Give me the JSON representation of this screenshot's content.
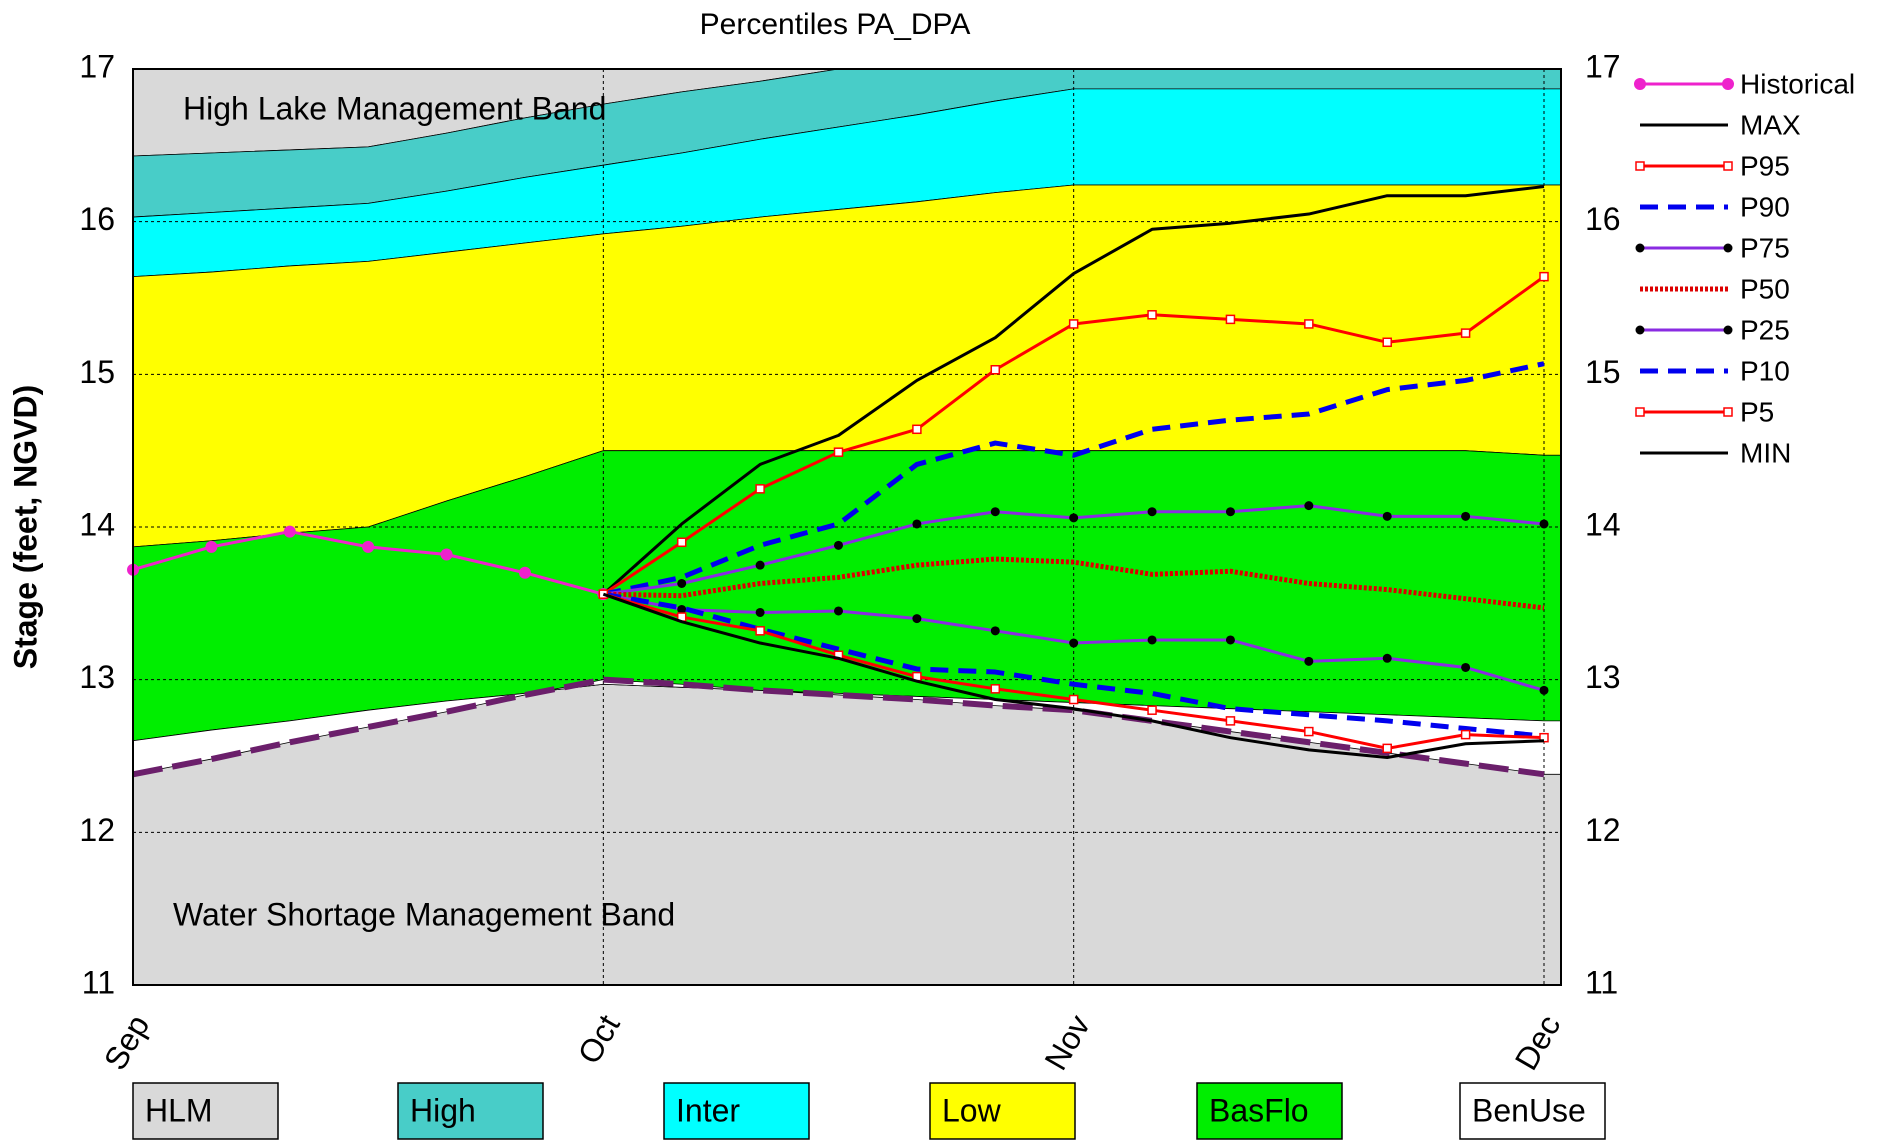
{
  "chart_data": {
    "type": "line",
    "title": "Percentiles PA_DPA",
    "y_label": "Stage (feet, NGVD)",
    "annotations": [
      "High Lake Management Band",
      "Water Shortage Management Band"
    ],
    "categories": [
      "Sep",
      null,
      null,
      null,
      null,
      null,
      "Oct",
      null,
      null,
      null,
      null,
      null,
      "Nov",
      null,
      null,
      null,
      null,
      null,
      "Dec"
    ],
    "ylim": [
      11,
      17
    ],
    "yticks": [
      11,
      12,
      13,
      14,
      15,
      16,
      17
    ],
    "y2lim": [
      11,
      17
    ],
    "y2ticks": [
      11,
      12,
      13,
      14,
      15,
      16,
      17
    ],
    "grid": true,
    "legend": "right",
    "background_color": "#d9d9d9",
    "bands": [
      {
        "name": "HLM",
        "color": "#d9d9d9",
        "values": [
          17,
          17,
          17,
          17,
          17,
          17,
          17,
          17,
          17,
          17,
          17,
          17,
          17,
          17,
          17,
          17,
          17,
          17,
          17
        ]
      },
      {
        "name": "High",
        "color": "#48cdc8",
        "values": [
          16.43,
          16.45,
          16.47,
          16.49,
          16.58,
          16.68,
          16.77,
          16.85,
          16.92,
          17,
          17,
          17,
          17,
          17,
          17,
          17,
          17,
          17,
          17
        ]
      },
      {
        "name": "Inter",
        "color": "#00ffff",
        "values": [
          16.03,
          16.06,
          16.09,
          16.12,
          16.2,
          16.29,
          16.37,
          16.45,
          16.54,
          16.62,
          16.7,
          16.79,
          16.87,
          16.87,
          16.87,
          16.87,
          16.87,
          16.87,
          16.87
        ]
      },
      {
        "name": "Low",
        "color": "#ffff00",
        "values": [
          15.64,
          15.67,
          15.71,
          15.74,
          15.8,
          15.86,
          15.92,
          15.97,
          16.03,
          16.08,
          16.13,
          16.19,
          16.24,
          16.24,
          16.24,
          16.24,
          16.24,
          16.24,
          16.24
        ]
      },
      {
        "name": "BasFlo",
        "color": "#00ee00",
        "values": [
          13.87,
          13.91,
          13.96,
          14.0,
          14.17,
          14.33,
          14.5,
          14.5,
          14.5,
          14.5,
          14.5,
          14.5,
          14.5,
          14.5,
          14.5,
          14.5,
          14.5,
          14.5,
          14.47
        ]
      },
      {
        "name": "BenUse",
        "color": "#ffffff",
        "values": [
          12.6,
          12.67,
          12.73,
          12.8,
          12.86,
          12.91,
          12.97,
          12.95,
          12.93,
          12.91,
          12.89,
          12.87,
          12.85,
          12.83,
          12.81,
          12.79,
          12.77,
          12.75,
          12.73
        ]
      }
    ],
    "shortage_line": {
      "color": "#6b1f6b",
      "values": [
        12.38,
        12.48,
        12.59,
        12.69,
        12.79,
        12.9,
        13.0,
        12.97,
        12.93,
        12.9,
        12.87,
        12.83,
        12.8,
        12.73,
        12.66,
        12.59,
        12.52,
        12.45,
        12.38
      ]
    },
    "series": [
      {
        "name": "Historical",
        "color": "#ee22cc",
        "dash": "solid",
        "marker": "circle",
        "values": [
          13.72,
          13.87,
          13.97,
          13.87,
          13.82,
          13.7,
          13.56,
          null,
          null,
          null,
          null,
          null,
          null,
          null,
          null,
          null,
          null,
          null,
          null
        ]
      },
      {
        "name": "MAX",
        "color": "#000000",
        "dash": "solid",
        "marker": "none",
        "values": [
          null,
          null,
          null,
          null,
          null,
          null,
          13.56,
          14.02,
          14.41,
          14.6,
          14.96,
          15.24,
          15.66,
          15.95,
          15.99,
          16.05,
          16.17,
          16.17,
          16.23
        ]
      },
      {
        "name": "P95",
        "color": "#ff0000",
        "dash": "solid",
        "marker": "square",
        "values": [
          null,
          null,
          null,
          null,
          null,
          null,
          13.56,
          13.9,
          14.25,
          14.49,
          14.64,
          15.03,
          15.33,
          15.39,
          15.36,
          15.33,
          15.21,
          15.27,
          15.64
        ]
      },
      {
        "name": "P90",
        "color": "#0000ee",
        "dash": "dashed",
        "marker": "none",
        "values": [
          null,
          null,
          null,
          null,
          null,
          null,
          13.56,
          13.67,
          13.88,
          14.02,
          14.41,
          14.55,
          14.47,
          14.64,
          14.7,
          14.74,
          14.9,
          14.96,
          15.07
        ]
      },
      {
        "name": "P75",
        "color": "#8a2be2",
        "dash": "solid",
        "marker": "dot",
        "values": [
          null,
          null,
          null,
          null,
          null,
          null,
          13.56,
          13.63,
          13.75,
          13.88,
          14.02,
          14.1,
          14.06,
          14.1,
          14.1,
          14.14,
          14.07,
          14.07,
          14.02
        ]
      },
      {
        "name": "P50",
        "color": "#dd0000",
        "dash": "dotted",
        "marker": "none",
        "values": [
          null,
          null,
          null,
          null,
          null,
          null,
          13.56,
          13.55,
          13.63,
          13.67,
          13.75,
          13.79,
          13.77,
          13.69,
          13.71,
          13.63,
          13.59,
          13.53,
          13.47
        ]
      },
      {
        "name": "P25",
        "color": "#8a2be2",
        "dash": "solid",
        "marker": "dot",
        "values": [
          null,
          null,
          null,
          null,
          null,
          null,
          13.56,
          13.46,
          13.44,
          13.45,
          13.4,
          13.32,
          13.24,
          13.26,
          13.26,
          13.12,
          13.14,
          13.08,
          12.93
        ]
      },
      {
        "name": "P10",
        "color": "#0000ee",
        "dash": "dashed",
        "marker": "none",
        "values": [
          null,
          null,
          null,
          null,
          null,
          null,
          13.56,
          13.47,
          13.33,
          13.2,
          13.07,
          13.05,
          12.97,
          12.91,
          12.81,
          12.77,
          12.73,
          12.68,
          12.63
        ]
      },
      {
        "name": "P5",
        "color": "#ff0000",
        "dash": "solid",
        "marker": "square",
        "values": [
          null,
          null,
          null,
          null,
          null,
          null,
          13.56,
          13.41,
          13.32,
          13.16,
          13.02,
          12.94,
          12.87,
          12.8,
          12.73,
          12.66,
          12.55,
          12.64,
          12.62
        ]
      },
      {
        "name": "MIN",
        "color": "#000000",
        "dash": "solid",
        "marker": "none",
        "values": [
          null,
          null,
          null,
          null,
          null,
          null,
          13.56,
          13.38,
          13.24,
          13.14,
          12.99,
          12.87,
          12.81,
          12.73,
          12.62,
          12.54,
          12.49,
          12.58,
          12.6
        ]
      }
    ]
  }
}
